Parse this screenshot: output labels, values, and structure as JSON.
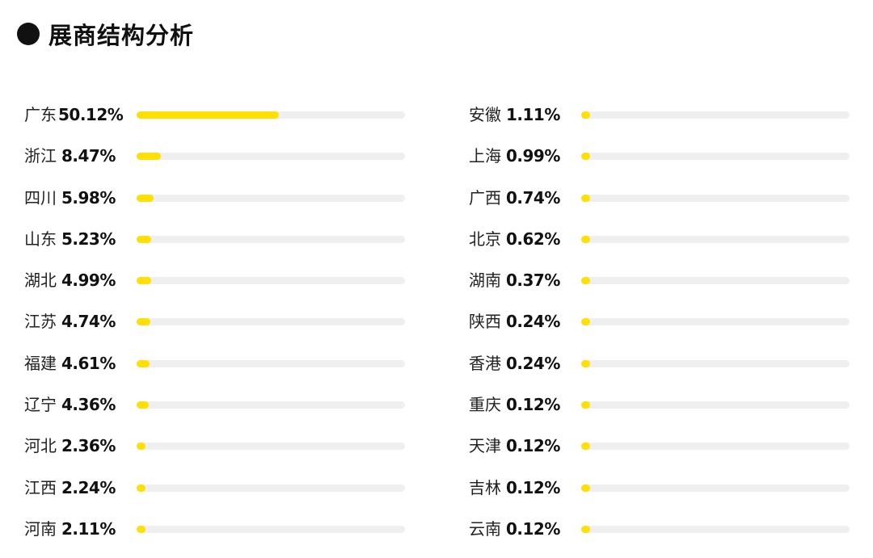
{
  "title": "展商结构分析",
  "colors": {
    "bar_fill": "#ffe000",
    "bar_track": "#efefef",
    "text": "#111111"
  },
  "chart_data": {
    "type": "bar",
    "orientation": "horizontal",
    "title": "展商结构分析",
    "unit": "%",
    "columns": [
      {
        "rows": [
          {
            "name": "广东",
            "value": 50.12,
            "label": "50.12%"
          },
          {
            "name": "浙江",
            "value": 8.47,
            "label": "8.47%"
          },
          {
            "name": "四川",
            "value": 5.98,
            "label": "5.98%"
          },
          {
            "name": "山东",
            "value": 5.23,
            "label": "5.23%"
          },
          {
            "name": "湖北",
            "value": 4.99,
            "label": "4.99%"
          },
          {
            "name": "江苏",
            "value": 4.74,
            "label": "4.74%"
          },
          {
            "name": "福建",
            "value": 4.61,
            "label": "4.61%"
          },
          {
            "name": "辽宁",
            "value": 4.36,
            "label": "4.36%"
          },
          {
            "name": "河北",
            "value": 2.36,
            "label": "2.36%"
          },
          {
            "name": "江西",
            "value": 2.24,
            "label": "2.24%"
          },
          {
            "name": "河南",
            "value": 2.11,
            "label": "2.11%"
          }
        ]
      },
      {
        "rows": [
          {
            "name": "安徽",
            "value": 1.11,
            "label": "1.11%"
          },
          {
            "name": "上海",
            "value": 0.99,
            "label": "0.99%"
          },
          {
            "name": "广西",
            "value": 0.74,
            "label": "0.74%"
          },
          {
            "name": "北京",
            "value": 0.62,
            "label": "0.62%"
          },
          {
            "name": "湖南",
            "value": 0.37,
            "label": "0.37%"
          },
          {
            "name": "陕西",
            "value": 0.24,
            "label": "0.24%"
          },
          {
            "name": "香港",
            "value": 0.24,
            "label": "0.24%"
          },
          {
            "name": "重庆",
            "value": 0.12,
            "label": "0.12%"
          },
          {
            "name": "天津",
            "value": 0.12,
            "label": "0.12%"
          },
          {
            "name": "吉林",
            "value": 0.12,
            "label": "0.12%"
          },
          {
            "name": "云南",
            "value": 0.12,
            "label": "0.12%"
          }
        ]
      }
    ],
    "xlim": [
      0,
      100
    ],
    "grid": false
  }
}
